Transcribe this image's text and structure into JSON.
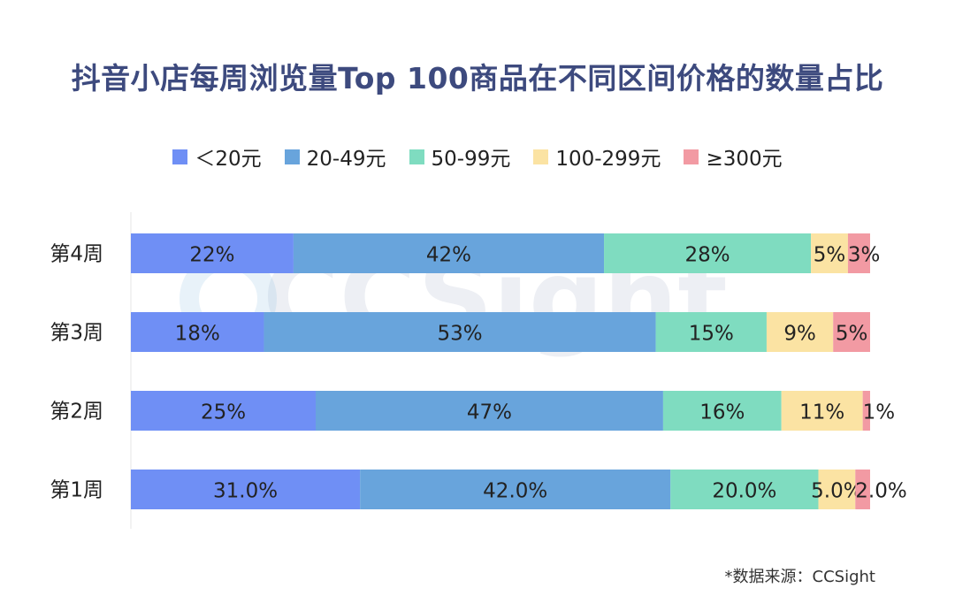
{
  "chart_data": {
    "type": "bar",
    "orientation": "horizontal",
    "stacked": true,
    "title": "抖音小店每周浏览量Top 100商品在不同区间价格的数量占比",
    "categories": [
      "第4周",
      "第3周",
      "第2周",
      "第1周"
    ],
    "series": [
      {
        "name": "＜20元",
        "color": "#6f8ff5",
        "values": [
          22,
          18,
          25,
          31.0
        ],
        "labels": [
          "22%",
          "18%",
          "25%",
          "31.0%"
        ]
      },
      {
        "name": "20-49元",
        "color": "#68a4dc",
        "values": [
          42,
          53,
          47,
          42.0
        ],
        "labels": [
          "42%",
          "53%",
          "47%",
          "42.0%"
        ]
      },
      {
        "name": "50-99元",
        "color": "#7fdcc0",
        "values": [
          28,
          15,
          16,
          20.0
        ],
        "labels": [
          "28%",
          "15%",
          "16%",
          "20.0%"
        ]
      },
      {
        "name": "100-299元",
        "color": "#fbe3a3",
        "values": [
          5,
          9,
          11,
          5.0
        ],
        "labels": [
          "5%",
          "9%",
          "11%",
          "5.0%"
        ]
      },
      {
        "name": "≥300元",
        "color": "#f29aa3",
        "values": [
          3,
          5,
          1,
          2.0
        ],
        "labels": [
          "3%",
          "5%",
          "1%",
          "2.0%"
        ]
      }
    ],
    "legend_position": "top-center",
    "grid": false
  },
  "watermark": "CCSight",
  "source_note": "*数据来源：CCSight"
}
